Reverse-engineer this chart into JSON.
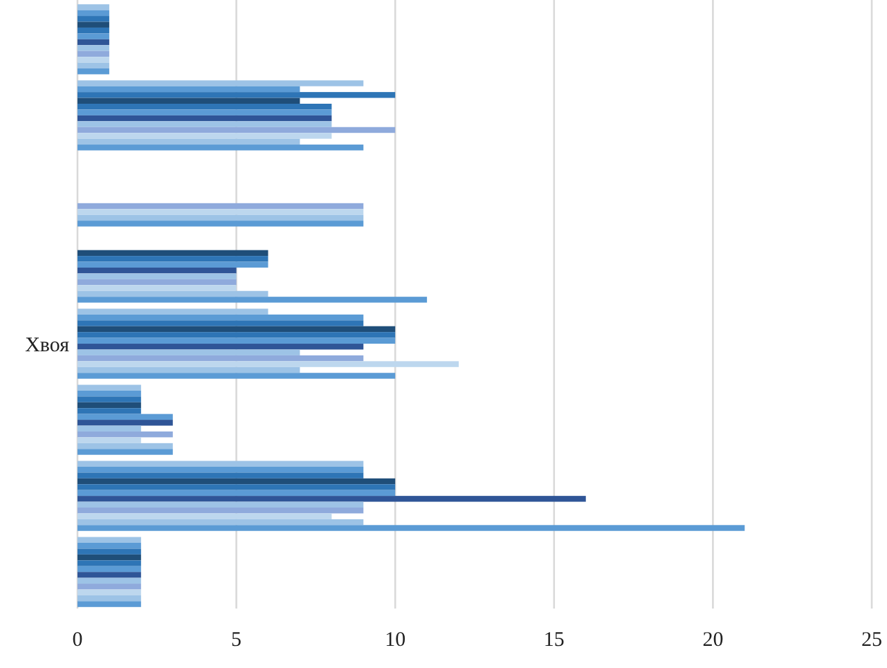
{
  "chart_data": {
    "type": "bar",
    "orientation": "horizontal",
    "categories": [
      null,
      null,
      null,
      null,
      "Хвоя",
      null,
      null,
      null
    ],
    "series": [
      {
        "color": "#9dc3e6",
        "values": [
          1,
          9,
          null,
          null,
          6,
          2,
          9,
          2
        ]
      },
      {
        "color": "#5b9bd5",
        "values": [
          1,
          7,
          null,
          null,
          9,
          2,
          9,
          2
        ]
      },
      {
        "color": "#2e75b6",
        "values": [
          1,
          10,
          null,
          null,
          9,
          2,
          9,
          2
        ]
      },
      {
        "color": "#1f4e79",
        "values": [
          1,
          7,
          null,
          6,
          10,
          2,
          10,
          2
        ]
      },
      {
        "color": "#2e75b6",
        "values": [
          1,
          8,
          null,
          6,
          10,
          2,
          10,
          2
        ]
      },
      {
        "color": "#5b9bd5",
        "values": [
          1,
          8,
          null,
          6,
          10,
          3,
          10,
          2
        ]
      },
      {
        "color": "#2f5597",
        "values": [
          1,
          8,
          null,
          5,
          9,
          3,
          16,
          2
        ]
      },
      {
        "color": "#9dc3e6",
        "values": [
          1,
          8,
          null,
          5,
          7,
          2,
          9,
          2
        ]
      },
      {
        "color": "#8faadc",
        "values": [
          1,
          10,
          9,
          5,
          9,
          3,
          9,
          2
        ]
      },
      {
        "color": "#bdd7ee",
        "values": [
          1,
          8,
          9,
          5,
          12,
          2,
          8,
          2
        ]
      },
      {
        "color": "#9dc3e6",
        "values": [
          1,
          7,
          9,
          6,
          7,
          3,
          9,
          2
        ]
      },
      {
        "color": "#5b9bd5",
        "values": [
          1,
          9,
          9,
          11,
          10,
          3,
          21,
          2
        ]
      }
    ],
    "xlim": [
      0,
      25
    ],
    "xticks": [
      0,
      5,
      10,
      15,
      20,
      25
    ],
    "grid": "x"
  }
}
